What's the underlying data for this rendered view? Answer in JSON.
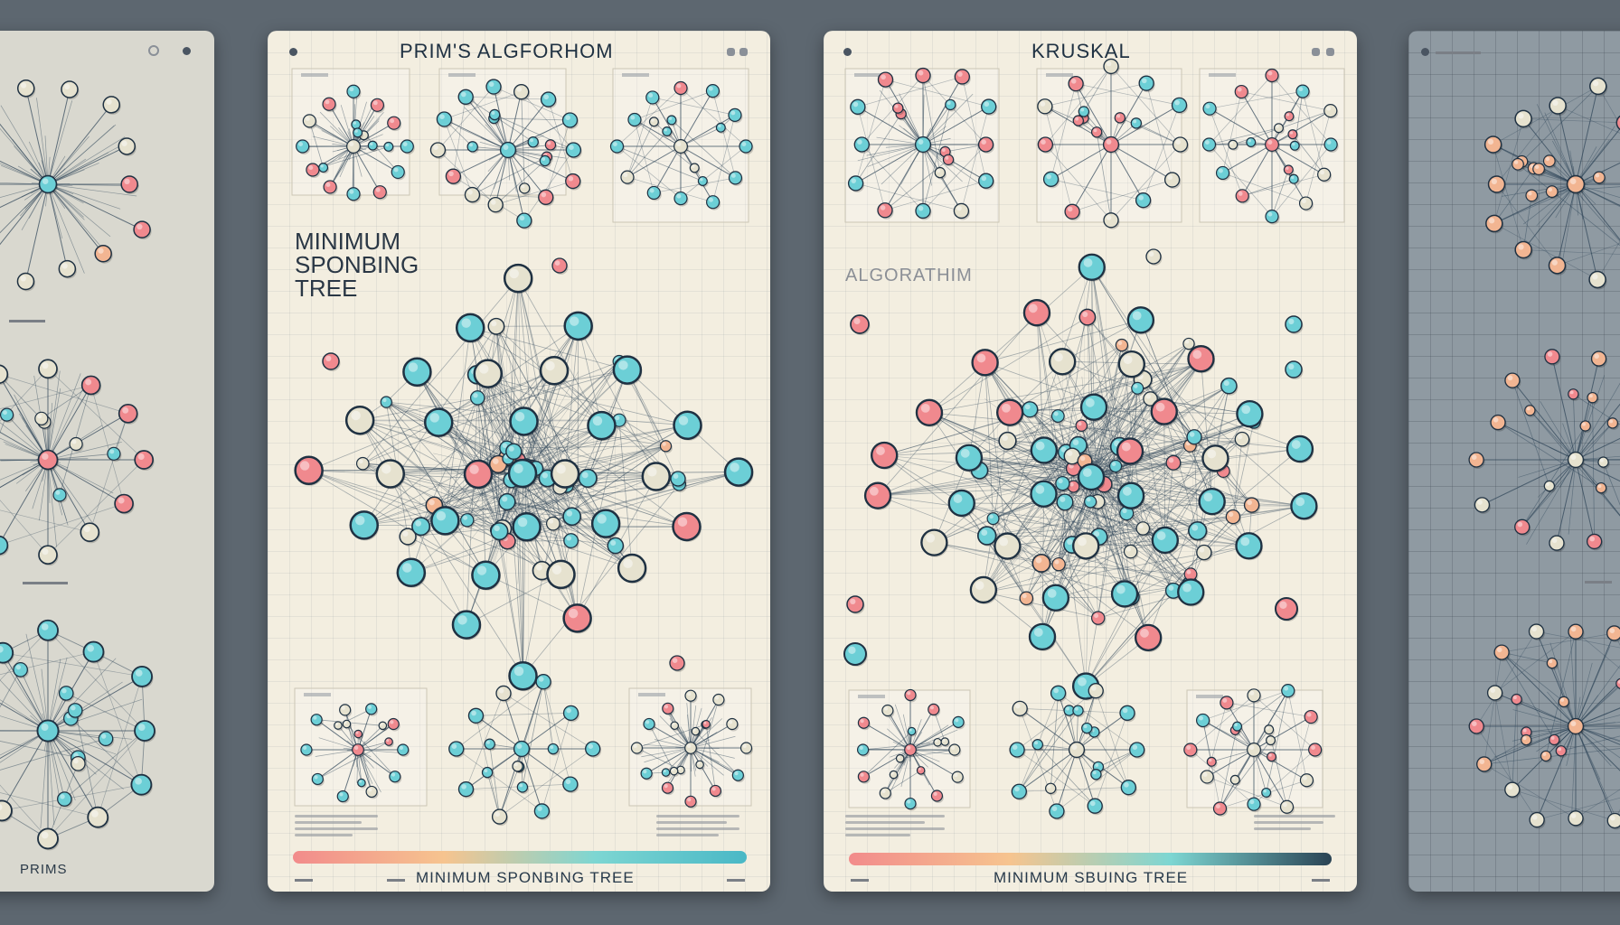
{
  "cards": {
    "left": {
      "labels": [
        "PRIMS"
      ]
    },
    "prim": {
      "title": "PRIM'S ALGFORHOM",
      "subtitle": "MINIMUM\nSPONBING\nTREE",
      "footer": "MINIMUM SPONBING TREE"
    },
    "kruskal": {
      "title": "KRUSKAL",
      "faint_heading": "ALGORATHIM",
      "footer": "MINIMUM SBUING TREE"
    }
  },
  "colors": {
    "node_teal": "#6ccfd6",
    "node_pink": "#f0898e",
    "node_peach": "#f2b592",
    "node_cream": "#e6e2cf",
    "edge": "#2b4256",
    "gradient_bar_prim": [
      "#f28b8b",
      "#f6c48f",
      "#7dd6d2",
      "#49b8c6"
    ],
    "gradient_bar_kruskal": [
      "#f28b8b",
      "#f6c48f",
      "#7dd6d2",
      "#2a4354"
    ]
  }
}
